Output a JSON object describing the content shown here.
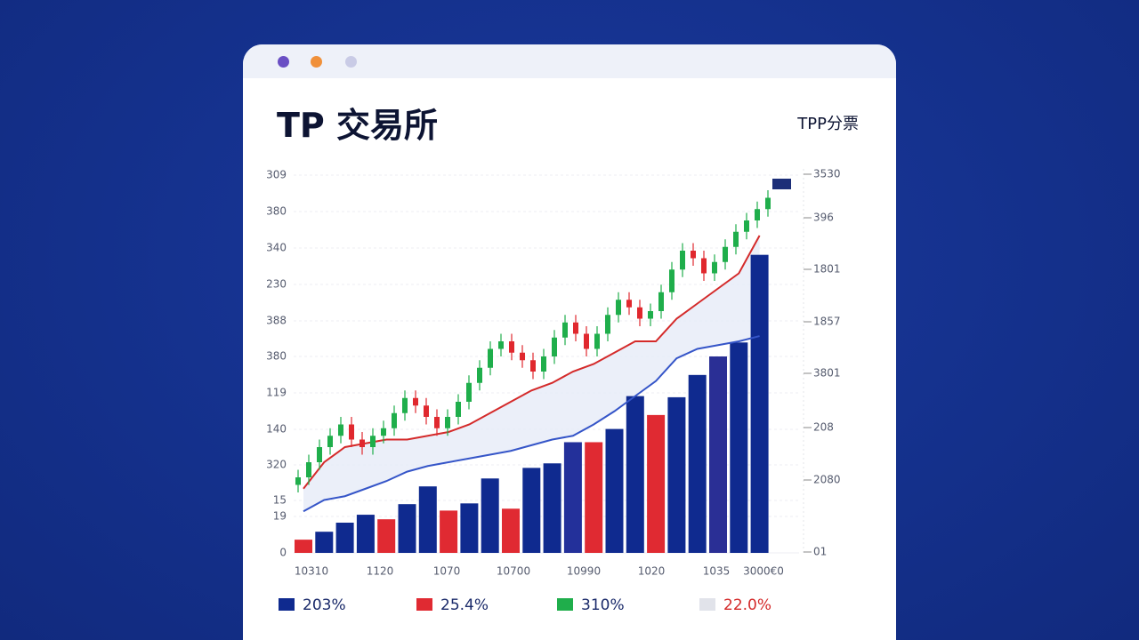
{
  "window": {
    "title": "TP 交易所",
    "subtitle": "TPP分票"
  },
  "chart_data": {
    "type": "bar",
    "y_labels": [
      "309",
      "380",
      "340",
      "230",
      "388",
      "380",
      "119",
      "140",
      "320",
      "15",
      "19",
      "0"
    ],
    "right_labels": [
      "3530",
      "396",
      "1801",
      "1857",
      "3801",
      "208",
      "2080",
      "01"
    ],
    "categories": [
      "10310",
      "1120",
      "1070",
      "10700",
      "10990",
      "1020",
      "1035",
      "3000€0"
    ],
    "ylim": [
      0,
      100
    ],
    "bars": {
      "values": [
        3.5,
        5.6,
        8.0,
        10.1,
        8.9,
        12.9,
        17.6,
        11.2,
        13.1,
        19.7,
        11.7,
        22.5,
        23.7,
        29.3,
        29.3,
        32.8,
        41.5,
        36.5,
        41.2,
        47.1,
        52.0,
        55.7,
        78.9
      ],
      "colors": [
        "#e02a32",
        "#0f2a8f",
        "#0f2a8f",
        "#0f2a8f",
        "#e02a32",
        "#0f2a8f",
        "#0f2a8f",
        "#e02a32",
        "#0f2a8f",
        "#0f2a8f",
        "#e02a32",
        "#0f2a8f",
        "#0f2a8f",
        "#23309a",
        "#e02a32",
        "#0f2a8f",
        "#0f2a8f",
        "#e02a32",
        "#0f2a8f",
        "#0f2a8f",
        "#2a2f95",
        "#0f2a8f",
        "#0f2a8f"
      ]
    },
    "lines": [
      {
        "color": "#d42a2a",
        "values": [
          17,
          24,
          28,
          29,
          30,
          30,
          31,
          32,
          34,
          37,
          40,
          43,
          45,
          48,
          50,
          53,
          56,
          56,
          62,
          66,
          70,
          74,
          84
        ]
      },
      {
        "color": "#3555c8",
        "values": [
          11,
          14,
          15,
          17,
          19,
          21.5,
          23,
          24,
          25,
          26,
          27,
          28.5,
          30,
          31,
          34,
          37.5,
          41.5,
          45.5,
          51.5,
          54,
          55,
          56,
          57.4
        ]
      }
    ],
    "candle_colors": {
      "up": "#1fae4b",
      "down": "#e0282e"
    },
    "candles": [
      {
        "o": 18,
        "h": 22,
        "l": 16,
        "c": 20
      },
      {
        "o": 20,
        "h": 26,
        "l": 18,
        "c": 24
      },
      {
        "o": 24,
        "h": 30,
        "l": 22,
        "c": 28
      },
      {
        "o": 28,
        "h": 33,
        "l": 26,
        "c": 31
      },
      {
        "o": 31,
        "h": 36,
        "l": 29,
        "c": 34
      },
      {
        "o": 34,
        "h": 36,
        "l": 28,
        "c": 30
      },
      {
        "o": 30,
        "h": 32,
        "l": 26,
        "c": 28
      },
      {
        "o": 28,
        "h": 33,
        "l": 26,
        "c": 31
      },
      {
        "o": 31,
        "h": 35,
        "l": 29,
        "c": 33
      },
      {
        "o": 33,
        "h": 39,
        "l": 31,
        "c": 37
      },
      {
        "o": 37,
        "h": 43,
        "l": 35,
        "c": 41
      },
      {
        "o": 41,
        "h": 43,
        "l": 37,
        "c": 39
      },
      {
        "o": 39,
        "h": 41,
        "l": 34,
        "c": 36
      },
      {
        "o": 36,
        "h": 38,
        "l": 31,
        "c": 33
      },
      {
        "o": 33,
        "h": 38,
        "l": 31,
        "c": 36
      },
      {
        "o": 36,
        "h": 42,
        "l": 34,
        "c": 40
      },
      {
        "o": 40,
        "h": 47,
        "l": 38,
        "c": 45
      },
      {
        "o": 45,
        "h": 51,
        "l": 43,
        "c": 49
      },
      {
        "o": 49,
        "h": 56,
        "l": 47,
        "c": 54
      },
      {
        "o": 54,
        "h": 58,
        "l": 52,
        "c": 56
      },
      {
        "o": 56,
        "h": 58,
        "l": 51,
        "c": 53
      },
      {
        "o": 53,
        "h": 55,
        "l": 49,
        "c": 51
      },
      {
        "o": 51,
        "h": 53,
        "l": 46,
        "c": 48
      },
      {
        "o": 48,
        "h": 54,
        "l": 46,
        "c": 52
      },
      {
        "o": 52,
        "h": 59,
        "l": 50,
        "c": 57
      },
      {
        "o": 57,
        "h": 63,
        "l": 55,
        "c": 61
      },
      {
        "o": 61,
        "h": 63,
        "l": 56,
        "c": 58
      },
      {
        "o": 58,
        "h": 60,
        "l": 52,
        "c": 54
      },
      {
        "o": 54,
        "h": 60,
        "l": 52,
        "c": 58
      },
      {
        "o": 58,
        "h": 65,
        "l": 56,
        "c": 63
      },
      {
        "o": 63,
        "h": 69,
        "l": 61,
        "c": 67
      },
      {
        "o": 67,
        "h": 69,
        "l": 63,
        "c": 65
      },
      {
        "o": 65,
        "h": 67,
        "l": 60,
        "c": 62
      },
      {
        "o": 62,
        "h": 66,
        "l": 60,
        "c": 64
      },
      {
        "o": 64,
        "h": 71,
        "l": 62,
        "c": 69
      },
      {
        "o": 69,
        "h": 77,
        "l": 67,
        "c": 75
      },
      {
        "o": 75,
        "h": 82,
        "l": 73,
        "c": 80
      },
      {
        "o": 80,
        "h": 82,
        "l": 76,
        "c": 78
      },
      {
        "o": 78,
        "h": 80,
        "l": 72,
        "c": 74
      },
      {
        "o": 74,
        "h": 79,
        "l": 72,
        "c": 77
      },
      {
        "o": 77,
        "h": 83,
        "l": 75,
        "c": 81
      },
      {
        "o": 81,
        "h": 87,
        "l": 79,
        "c": 85
      },
      {
        "o": 85,
        "h": 90,
        "l": 83,
        "c": 88
      },
      {
        "o": 88,
        "h": 93,
        "l": 86,
        "c": 91
      },
      {
        "o": 91,
        "h": 96,
        "l": 89,
        "c": 94
      }
    ],
    "legend": [
      {
        "color": "#0f2a8f",
        "label": "203%",
        "text_color": "#1a2a6a"
      },
      {
        "color": "#e02a32",
        "label": "25.4%",
        "text_color": "#1a2a6a"
      },
      {
        "color": "#1fae4b",
        "label": "310%",
        "text_color": "#1a2a6a"
      },
      {
        "color": "#e1e3ea",
        "label": "22.0%",
        "text_color": "#d42a2a"
      }
    ]
  }
}
